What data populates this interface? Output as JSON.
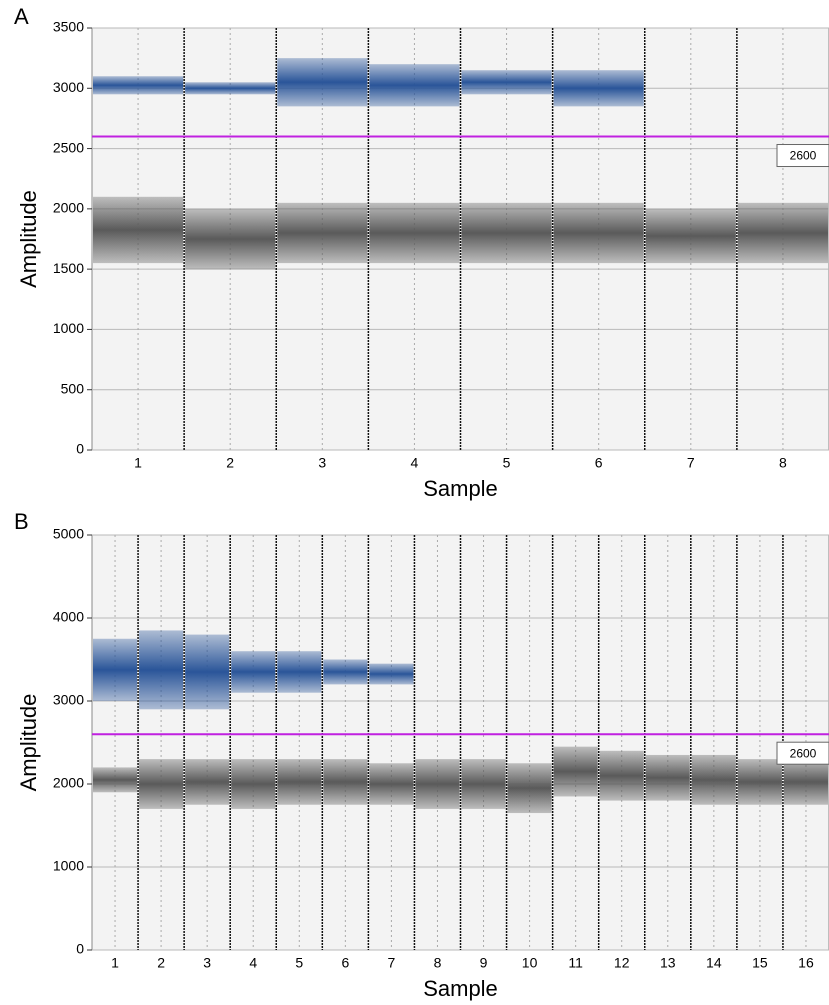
{
  "chart_data": [
    {
      "type": "droplet",
      "label": "A",
      "y_label": "Amplitude",
      "x_label": "Sample",
      "categories": [
        "1",
        "2",
        "3",
        "4",
        "5",
        "6",
        "7",
        "8"
      ],
      "ylim": [
        0,
        3500
      ],
      "yticks": [
        0,
        500,
        1000,
        1500,
        2000,
        2500,
        3000,
        3500
      ],
      "grid": true,
      "threshold": 2600,
      "threshold_color": "#c020e0",
      "series": [
        {
          "color": "#5a5a5a",
          "low": [
            1550,
            1500,
            1550,
            1550,
            1550,
            1550,
            1550,
            1550
          ],
          "high": [
            2100,
            2000,
            2050,
            2050,
            2050,
            2050,
            2000,
            2050
          ]
        },
        {
          "color": "#2a5599",
          "low": [
            2950,
            2950,
            2850,
            2850,
            2950,
            2850,
            null,
            null
          ],
          "high": [
            3100,
            3050,
            3250,
            3200,
            3150,
            3150,
            null,
            null
          ]
        }
      ]
    },
    {
      "type": "droplet",
      "label": "B",
      "y_label": "Amplitude",
      "x_label": "Sample",
      "categories": [
        "1",
        "2",
        "3",
        "4",
        "5",
        "6",
        "7",
        "8",
        "9",
        "10",
        "11",
        "12",
        "13",
        "14",
        "15",
        "16"
      ],
      "ylim": [
        0,
        5000
      ],
      "yticks": [
        0,
        1000,
        2000,
        3000,
        4000,
        5000
      ],
      "grid": true,
      "threshold": 2600,
      "threshold_color": "#c020e0",
      "series": [
        {
          "color": "#5a5a5a",
          "low": [
            1900,
            1700,
            1750,
            1700,
            1750,
            1750,
            1750,
            1700,
            1700,
            1650,
            1850,
            1800,
            1800,
            1750,
            1750,
            1750
          ],
          "high": [
            2200,
            2300,
            2300,
            2300,
            2300,
            2300,
            2250,
            2300,
            2300,
            2250,
            2450,
            2400,
            2350,
            2350,
            2300,
            2300
          ]
        },
        {
          "color": "#2a5599",
          "low": [
            3000,
            2900,
            2900,
            3100,
            3100,
            3200,
            3200,
            null,
            null,
            null,
            null,
            null,
            null,
            null,
            null,
            null
          ],
          "high": [
            3750,
            3850,
            3800,
            3600,
            3600,
            3500,
            3450,
            null,
            null,
            null,
            null,
            null,
            null,
            null,
            null,
            null
          ]
        }
      ]
    }
  ]
}
